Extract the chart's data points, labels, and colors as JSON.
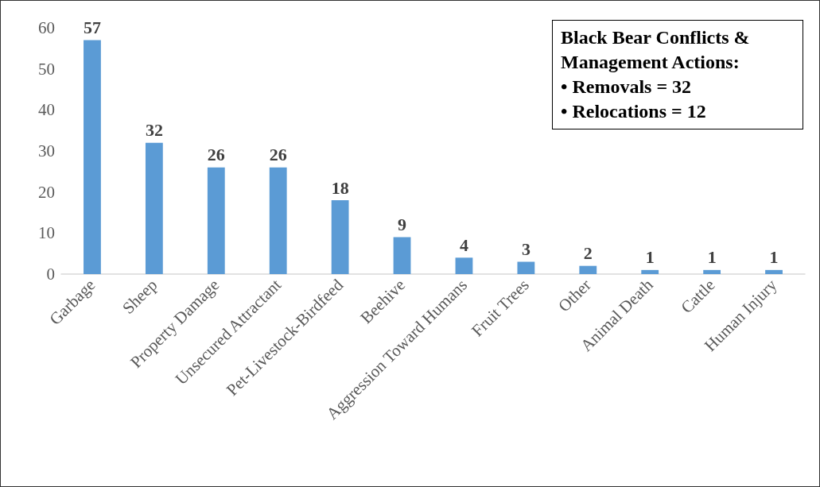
{
  "chart_data": {
    "type": "bar",
    "categories": [
      "Garbage",
      "Sheep",
      "Property Damage",
      "Unsecured Attractant",
      "Pet-Livestock-Birdfeed",
      "Beehive",
      "Aggression Toward Humans",
      "Fruit Trees",
      "Other",
      "Animal Death",
      "Cattle",
      "Human Injury"
    ],
    "values": [
      57,
      32,
      26,
      26,
      18,
      9,
      4,
      3,
      2,
      1,
      1,
      1
    ],
    "color": "#5b9bd5",
    "ylim": [
      0,
      60
    ],
    "yticks": [
      0,
      10,
      20,
      30,
      40,
      50,
      60
    ],
    "grid": false,
    "data_labels": true,
    "annotations": [
      "Black Bear Conflicts & Management Actions:",
      "• Removals = 32",
      "• Relocations = 12"
    ]
  }
}
